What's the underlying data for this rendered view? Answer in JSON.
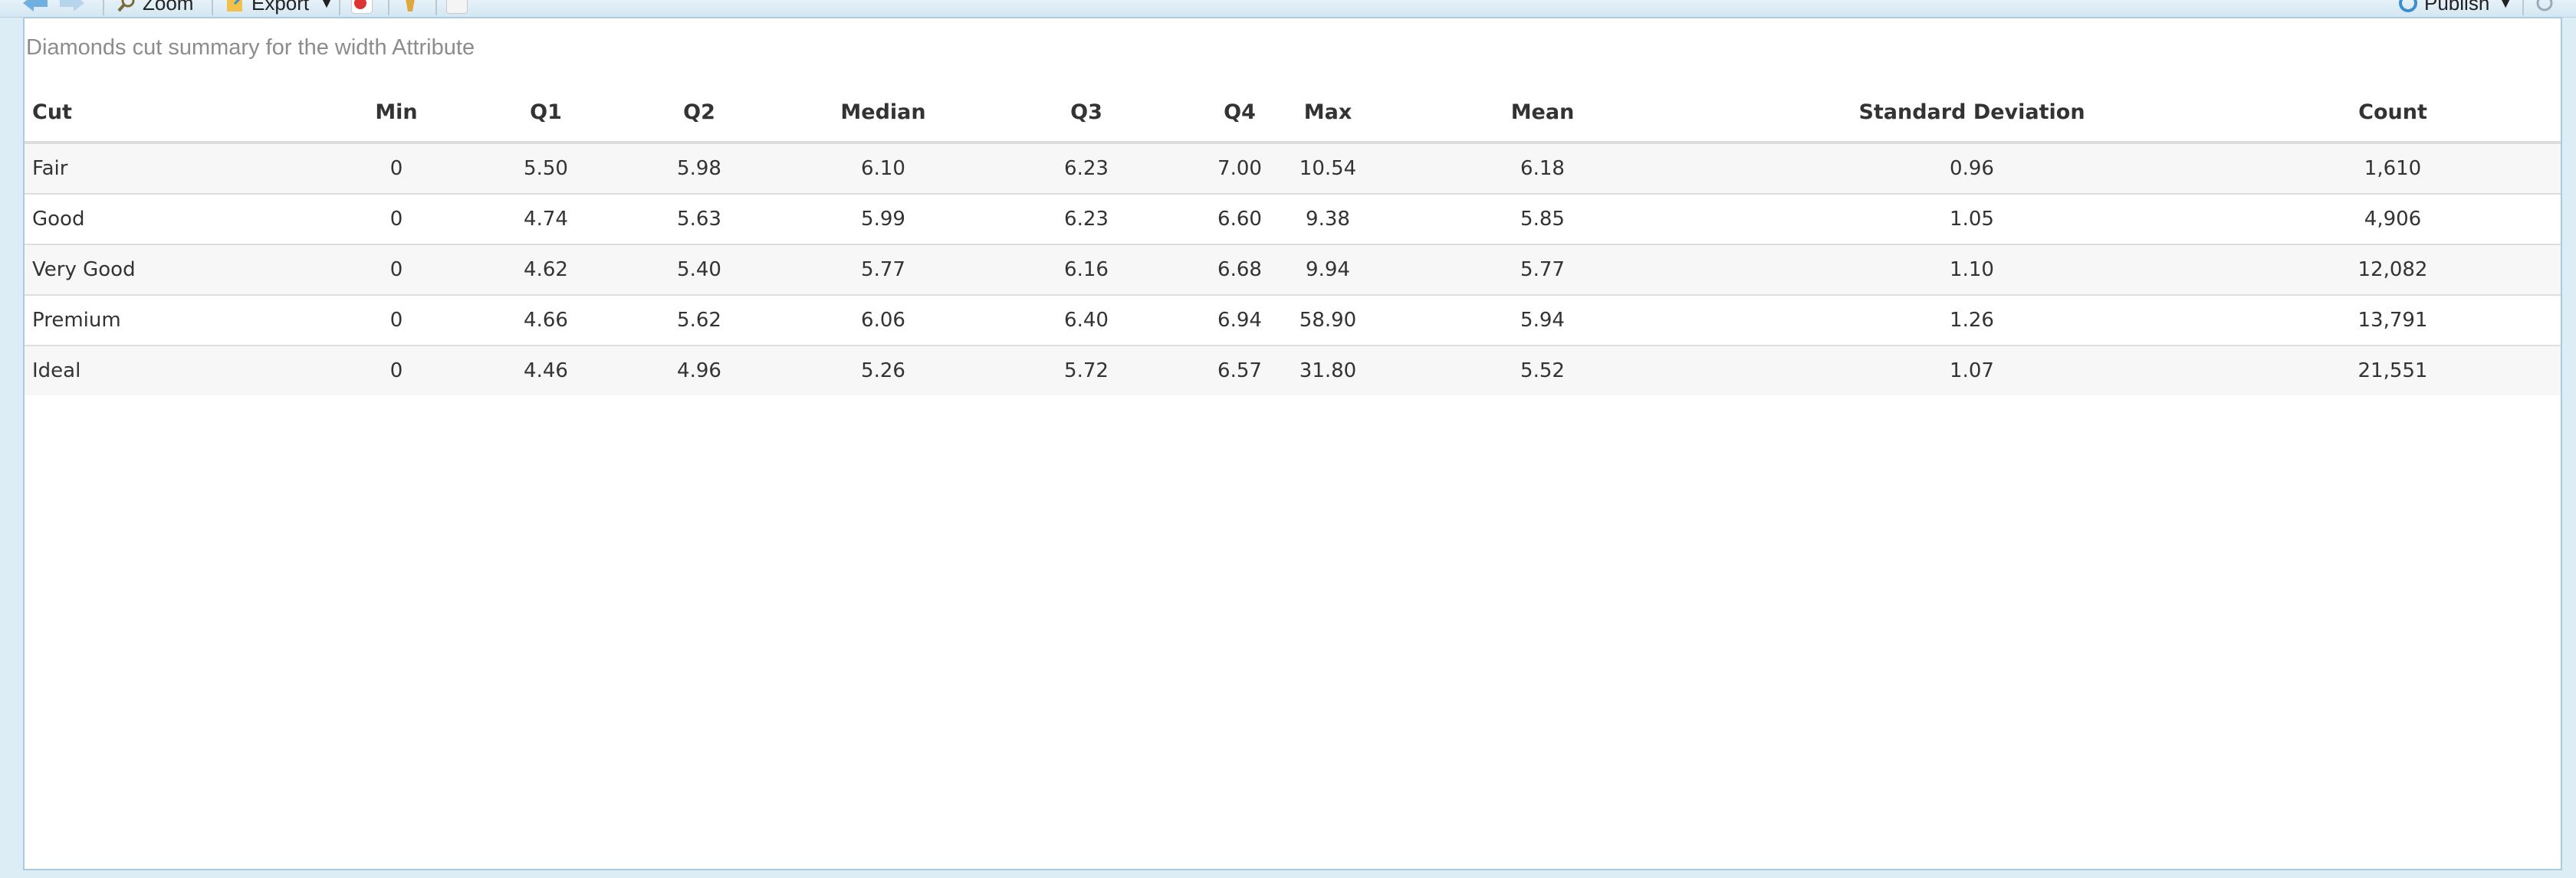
{
  "toolbar": {
    "zoom_label": "Zoom",
    "export_label": "Export",
    "publish_label": "Publish"
  },
  "caption": "Diamonds cut summary for the width Attribute",
  "table": {
    "headers": [
      "Cut",
      "Min",
      "Q1",
      "Q2",
      "Median",
      "Q3",
      "Q4",
      "Max",
      "Mean",
      "Standard Deviation",
      "Count"
    ],
    "rows": [
      [
        "Fair",
        "0",
        "5.50",
        "5.98",
        "6.10",
        "6.23",
        "7.00",
        "10.54",
        "6.18",
        "0.96",
        "1,610"
      ],
      [
        "Good",
        "0",
        "4.74",
        "5.63",
        "5.99",
        "6.23",
        "6.60",
        "9.38",
        "5.85",
        "1.05",
        "4,906"
      ],
      [
        "Very Good",
        "0",
        "4.62",
        "5.40",
        "5.77",
        "6.16",
        "6.68",
        "9.94",
        "5.77",
        "1.10",
        "12,082"
      ],
      [
        "Premium",
        "0",
        "4.66",
        "5.62",
        "6.06",
        "6.40",
        "6.94",
        "58.90",
        "5.94",
        "1.26",
        "13,791"
      ],
      [
        "Ideal",
        "0",
        "4.46",
        "4.96",
        "5.26",
        "5.72",
        "6.57",
        "31.80",
        "5.52",
        "1.07",
        "21,551"
      ]
    ]
  },
  "colors": {
    "accent": "#3a8fd0",
    "border": "#a9cde0",
    "toolbar_bg": "#dcedf6"
  }
}
